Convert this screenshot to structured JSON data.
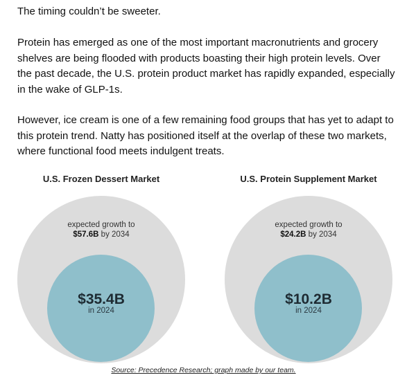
{
  "paragraphs": [
    "The timing couldn’t be sweeter.",
    "Protein has emerged as one of the most important macronutrients and grocery shelves are being flooded with products boasting their high protein levels. Over the past decade, the U.S. protein product market has rapidly expanded, especially in the wake of GLP-1s.",
    "However, ice cream is one of a few remaining food groups that has yet to adapt to this protein trend. Natty has positioned itself at the overlap of these two markets, where functional food meets indulgent treats."
  ],
  "charts": [
    {
      "title": "U.S. Frozen Dessert Market",
      "outer": {
        "label": "expected growth to",
        "value": "$57.6B",
        "suffix": "by 2034"
      },
      "inner": {
        "value": "$35.4B",
        "label": "in 2024"
      }
    },
    {
      "title": "U.S. Protein Supplement Market",
      "outer": {
        "label": "expected growth to",
        "value": "$24.2B",
        "suffix": "by 2034"
      },
      "inner": {
        "value": "$10.2B",
        "label": "in 2024"
      }
    }
  ],
  "source": "Source: Precedence Research; graph made by our team."
}
